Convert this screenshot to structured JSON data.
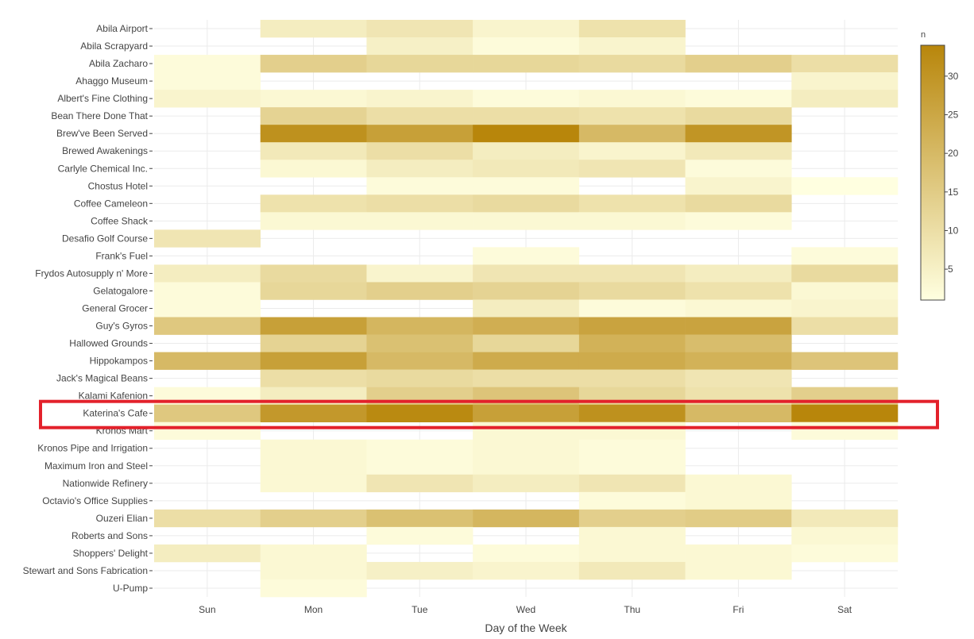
{
  "chart_data": {
    "type": "heatmap",
    "title": "",
    "xlabel": "Day of the Week",
    "ylabel": "",
    "x": [
      "Sun",
      "Mon",
      "Tue",
      "Wed",
      "Thu",
      "Fri",
      "Sat"
    ],
    "y": [
      "Abila Airport",
      "Abila Scrapyard",
      "Abila Zacharo",
      "Ahaggo Museum",
      "Albert's Fine Clothing",
      "Bean There Done That",
      "Brew've Been Served",
      "Brewed Awakenings",
      "Carlyle Chemical Inc.",
      "Chostus Hotel",
      "Coffee Cameleon",
      "Coffee Shack",
      "Desafio Golf Course",
      "Frank's Fuel",
      "Frydos Autosupply n' More",
      "Gelatogalore",
      "General Grocer",
      "Guy's Gyros",
      "Hallowed Grounds",
      "Hippokampos",
      "Jack's Magical Beans",
      "Kalami Kafenion",
      "Katerina's Cafe",
      "Kronos Mart",
      "Kronos Pipe and Irrigation",
      "Maximum Iron and Steel",
      "Nationwide Refinery",
      "Octavio's Office Supplies",
      "Ouzeri Elian",
      "Roberts and Sons",
      "Shoppers' Delight",
      "Stewart and Sons Fabrication",
      "U-Pump"
    ],
    "z": [
      [
        null,
        6,
        8,
        4,
        9,
        null,
        null
      ],
      [
        null,
        null,
        5,
        2,
        4,
        null,
        null
      ],
      [
        2,
        14,
        12,
        12,
        11,
        14,
        10
      ],
      [
        2,
        null,
        null,
        null,
        null,
        null,
        4
      ],
      [
        4,
        3,
        4,
        2,
        3,
        2,
        6
      ],
      [
        null,
        13,
        10,
        10,
        9,
        11,
        null
      ],
      [
        null,
        31,
        27,
        34,
        20,
        30,
        null
      ],
      [
        null,
        7,
        10,
        6,
        4,
        7,
        null
      ],
      [
        null,
        3,
        6,
        7,
        8,
        2,
        null
      ],
      [
        null,
        null,
        2,
        2,
        null,
        4,
        1
      ],
      [
        null,
        9,
        10,
        11,
        9,
        11,
        null
      ],
      [
        null,
        3,
        3,
        3,
        3,
        2,
        null
      ],
      [
        8,
        null,
        null,
        null,
        null,
        null,
        null
      ],
      [
        null,
        null,
        null,
        2,
        null,
        null,
        2
      ],
      [
        6,
        11,
        4,
        8,
        8,
        6,
        11
      ],
      [
        2,
        12,
        14,
        13,
        11,
        9,
        3
      ],
      [
        2,
        null,
        null,
        6,
        2,
        3,
        4
      ],
      [
        16,
        27,
        21,
        23,
        26,
        26,
        10
      ],
      [
        null,
        13,
        18,
        12,
        22,
        19,
        null
      ],
      [
        20,
        27,
        20,
        24,
        24,
        22,
        17
      ],
      [
        null,
        10,
        11,
        10,
        10,
        8,
        null
      ],
      [
        2,
        6,
        14,
        17,
        12,
        9,
        14
      ],
      [
        16,
        29,
        33,
        27,
        31,
        20,
        34
      ],
      [
        2,
        null,
        null,
        3,
        3,
        null,
        2
      ],
      [
        null,
        3,
        2,
        3,
        2,
        null,
        null
      ],
      [
        null,
        3,
        2,
        3,
        2,
        null,
        null
      ],
      [
        null,
        3,
        8,
        6,
        8,
        3,
        null
      ],
      [
        null,
        null,
        null,
        null,
        2,
        3,
        null
      ],
      [
        10,
        14,
        18,
        21,
        14,
        15,
        7
      ],
      [
        null,
        null,
        2,
        null,
        3,
        null,
        3
      ],
      [
        6,
        3,
        null,
        2,
        3,
        3,
        2
      ],
      [
        null,
        3,
        5,
        4,
        7,
        3,
        null
      ],
      [
        null,
        2,
        null,
        null,
        null,
        null,
        null
      ]
    ],
    "colorbar": {
      "title": "n",
      "ticks": [
        5,
        10,
        15,
        20,
        25,
        30
      ],
      "range": [
        1,
        34
      ],
      "low_color": "#ffffe0",
      "high_color": "#b8860b"
    },
    "grid": true,
    "legend_position": "right",
    "highlight_row": "Katerina's Cafe",
    "highlight_color": "#e3212b"
  }
}
